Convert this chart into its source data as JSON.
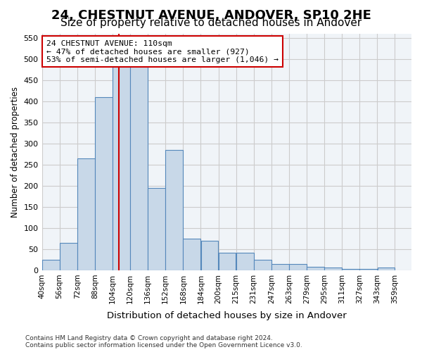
{
  "title1": "24, CHESTNUT AVENUE, ANDOVER, SP10 2HE",
  "title2": "Size of property relative to detached houses in Andover",
  "xlabel": "Distribution of detached houses by size in Andover",
  "ylabel": "Number of detached properties",
  "footer": "Contains HM Land Registry data © Crown copyright and database right 2024.\nContains public sector information licensed under the Open Government Licence v3.0.",
  "bin_labels": [
    "40sqm",
    "56sqm",
    "72sqm",
    "88sqm",
    "104sqm",
    "120sqm",
    "136sqm",
    "152sqm",
    "168sqm",
    "184sqm",
    "200sqm",
    "215sqm",
    "231sqm",
    "247sqm",
    "263sqm",
    "279sqm",
    "295sqm",
    "311sqm",
    "327sqm",
    "343sqm",
    "359sqm"
  ],
  "bar_values": [
    25,
    65,
    265,
    410,
    510,
    510,
    195,
    285,
    75,
    70,
    42,
    42,
    25,
    15,
    15,
    8,
    7,
    3,
    3,
    7
  ],
  "bin_width": 16,
  "bar_color": "#c8d8e8",
  "bar_edge_color": "#5588bb",
  "property_line_x": 110,
  "property_line_color": "#cc0000",
  "annotation_text": "24 CHESTNUT AVENUE: 110sqm\n← 47% of detached houses are smaller (927)\n53% of semi-detached houses are larger (1,046) →",
  "annotation_box_color": "#cc0000",
  "ylim": [
    0,
    560
  ],
  "yticks": [
    0,
    50,
    100,
    150,
    200,
    250,
    300,
    350,
    400,
    450,
    500,
    550
  ],
  "grid_color": "#cccccc",
  "background_color": "#f0f4f8",
  "title1_fontsize": 13,
  "title2_fontsize": 11,
  "xlim_min": 40,
  "xlim_max": 375
}
